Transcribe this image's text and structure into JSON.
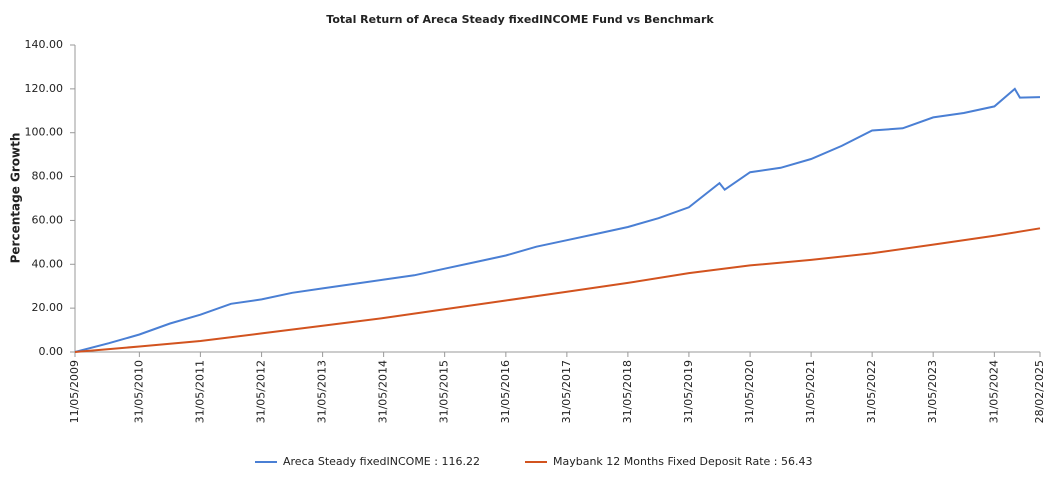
{
  "chart_data": {
    "type": "line",
    "title": "Total Return of Areca Steady fixedINCOME Fund vs Benchmark",
    "ylabel": "Percentage Growth",
    "xlim": [
      "11/05/2009",
      "28/02/2025"
    ],
    "xticks": [
      "11/05/2009",
      "31/05/2010",
      "31/05/2011",
      "31/05/2012",
      "31/05/2013",
      "31/05/2014",
      "31/05/2015",
      "31/05/2016",
      "31/05/2017",
      "31/05/2018",
      "31/05/2019",
      "31/05/2020",
      "31/05/2021",
      "31/05/2022",
      "31/05/2023",
      "31/05/2024",
      "28/02/2025"
    ],
    "ylim": [
      0,
      140
    ],
    "yticks": [
      {
        "value": 0,
        "label": "0.00"
      },
      {
        "value": 20,
        "label": "20.00"
      },
      {
        "value": 40,
        "label": "40.00"
      },
      {
        "value": 60,
        "label": "60.00"
      },
      {
        "value": 80,
        "label": "80.00"
      },
      {
        "value": 100,
        "label": "100.00"
      },
      {
        "value": 120,
        "label": "120.00"
      },
      {
        "value": 140,
        "label": "140.00"
      }
    ],
    "series": [
      {
        "name": "Areca Steady fixedINCOME : 116.22",
        "color": "#4a7fd4",
        "x": [
          "11/05/2009",
          "30/11/2009",
          "31/05/2010",
          "30/11/2010",
          "31/05/2011",
          "30/11/2011",
          "31/05/2012",
          "30/11/2012",
          "31/05/2013",
          "30/11/2013",
          "31/05/2014",
          "30/11/2014",
          "31/05/2015",
          "30/11/2015",
          "31/05/2016",
          "30/11/2016",
          "31/05/2017",
          "30/11/2017",
          "31/05/2018",
          "30/11/2018",
          "31/05/2019",
          "30/11/2019",
          "31/12/2019",
          "31/05/2020",
          "30/11/2020",
          "31/05/2021",
          "30/11/2021",
          "31/05/2022",
          "30/11/2022",
          "31/05/2023",
          "30/11/2023",
          "31/05/2024",
          "31/08/2024",
          "30/09/2024",
          "31/10/2024",
          "28/02/2025"
        ],
        "values": [
          0,
          4,
          8,
          13,
          17,
          22,
          24,
          27,
          29,
          31,
          33,
          35,
          38,
          41,
          44,
          48,
          51,
          54,
          57,
          61,
          66,
          77,
          74,
          82,
          84,
          88,
          94,
          101,
          102,
          107,
          109,
          112,
          118,
          120,
          116,
          116.22
        ]
      },
      {
        "name": "Maybank 12 Months Fixed Deposit Rate : 56.43",
        "color": "#d2531f",
        "x": [
          "11/05/2009",
          "31/05/2010",
          "31/05/2011",
          "31/05/2012",
          "31/05/2013",
          "31/05/2014",
          "31/05/2015",
          "31/05/2016",
          "31/05/2017",
          "31/05/2018",
          "31/05/2019",
          "31/05/2020",
          "31/05/2021",
          "31/05/2022",
          "31/05/2023",
          "31/05/2024",
          "28/02/2025"
        ],
        "values": [
          0,
          2.5,
          5,
          8.5,
          12,
          15.5,
          19.5,
          23.5,
          27.5,
          31.5,
          36,
          39.5,
          42,
          45,
          49,
          53,
          56.43
        ]
      }
    ]
  }
}
